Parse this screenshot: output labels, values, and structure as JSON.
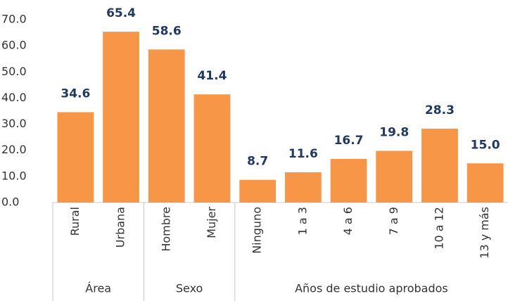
{
  "chart_data": {
    "type": "bar",
    "categories": [
      "Rural",
      "Urbana",
      "Hombre",
      "Mujer",
      "Ninguno",
      "1 a 3",
      "4 a 6",
      "7 a 9",
      "10 a 12",
      "13 y más"
    ],
    "values": [
      34.6,
      65.4,
      58.6,
      41.4,
      8.7,
      11.6,
      16.7,
      19.8,
      28.3,
      15
    ],
    "value_labels": [
      "34.6",
      "65.4",
      "58.6",
      "41.4",
      "8.7",
      "11.6",
      "16.7",
      "19.8",
      "28.3",
      "15.0"
    ],
    "groups": [
      {
        "label": "Área",
        "size": 2
      },
      {
        "label": "Sexo",
        "size": 2
      },
      {
        "label": "Años de estudio aprobados",
        "size": 6
      }
    ],
    "color": "#f79646",
    "ylim": [
      0,
      70
    ],
    "yticks": [
      {
        "value": 0,
        "label": "0.0"
      },
      {
        "value": 10,
        "label": "10.0"
      },
      {
        "value": 20,
        "label": "20.0"
      },
      {
        "value": 30,
        "label": "30.0"
      },
      {
        "value": 40,
        "label": "40.0"
      },
      {
        "value": 50,
        "label": "50.0"
      },
      {
        "value": 60,
        "label": "60.0"
      },
      {
        "value": 70,
        "label": "70.0"
      }
    ],
    "grid": false
  }
}
